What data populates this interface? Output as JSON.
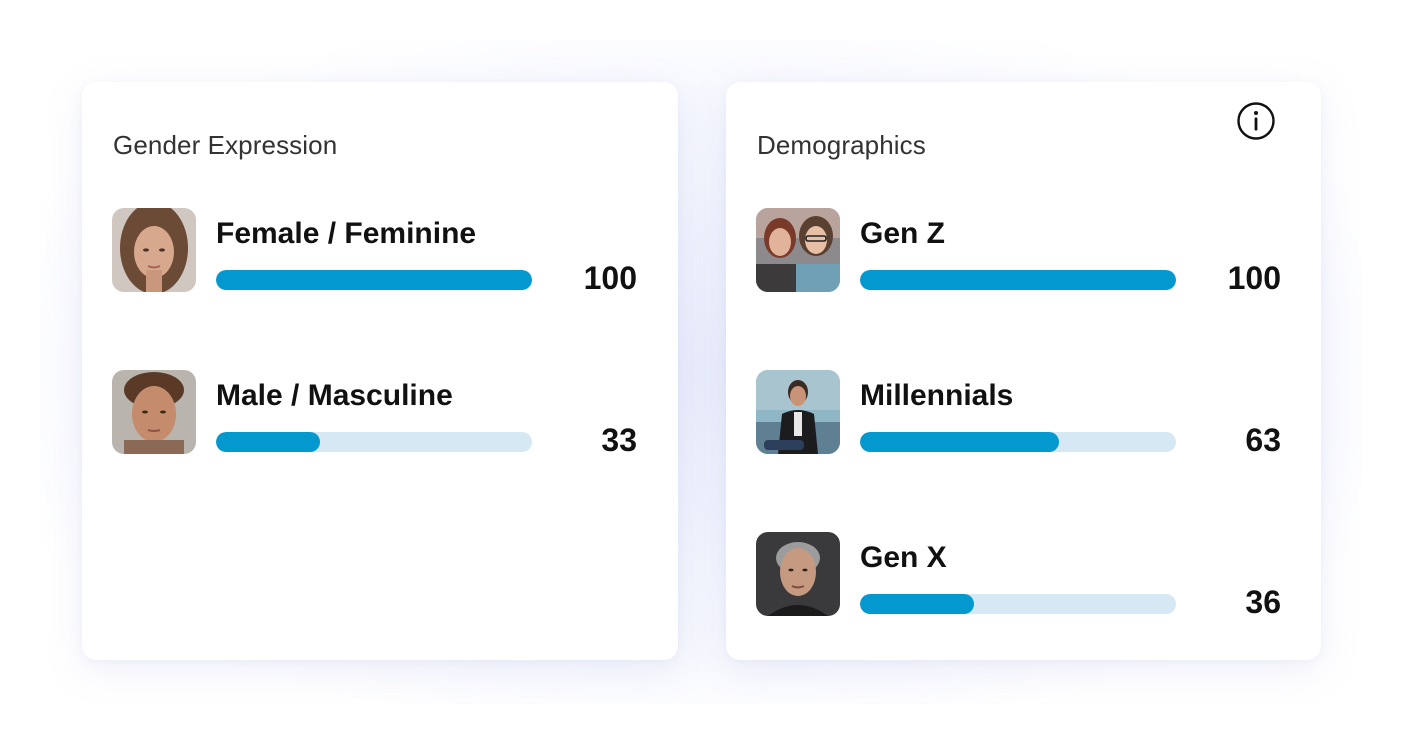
{
  "panels": {
    "gender": {
      "title": "Gender Expression",
      "rows": [
        {
          "label": "Female / Feminine",
          "value": "100",
          "fill": 1.0
        },
        {
          "label": "Male / Masculine",
          "value": "33",
          "fill": 0.33
        }
      ]
    },
    "demographics": {
      "title": "Demographics",
      "info_icon": "info-icon",
      "rows": [
        {
          "label": "Gen Z",
          "value": "100",
          "fill": 1.0
        },
        {
          "label": "Millennials",
          "value": "63",
          "fill": 0.63
        },
        {
          "label": "Gen X",
          "value": "36",
          "fill": 0.36
        }
      ]
    }
  },
  "colors": {
    "bar_fill": "#0399cf",
    "bar_track": "#d6e8f4",
    "title_text": "#333333",
    "value_text": "#111111"
  }
}
